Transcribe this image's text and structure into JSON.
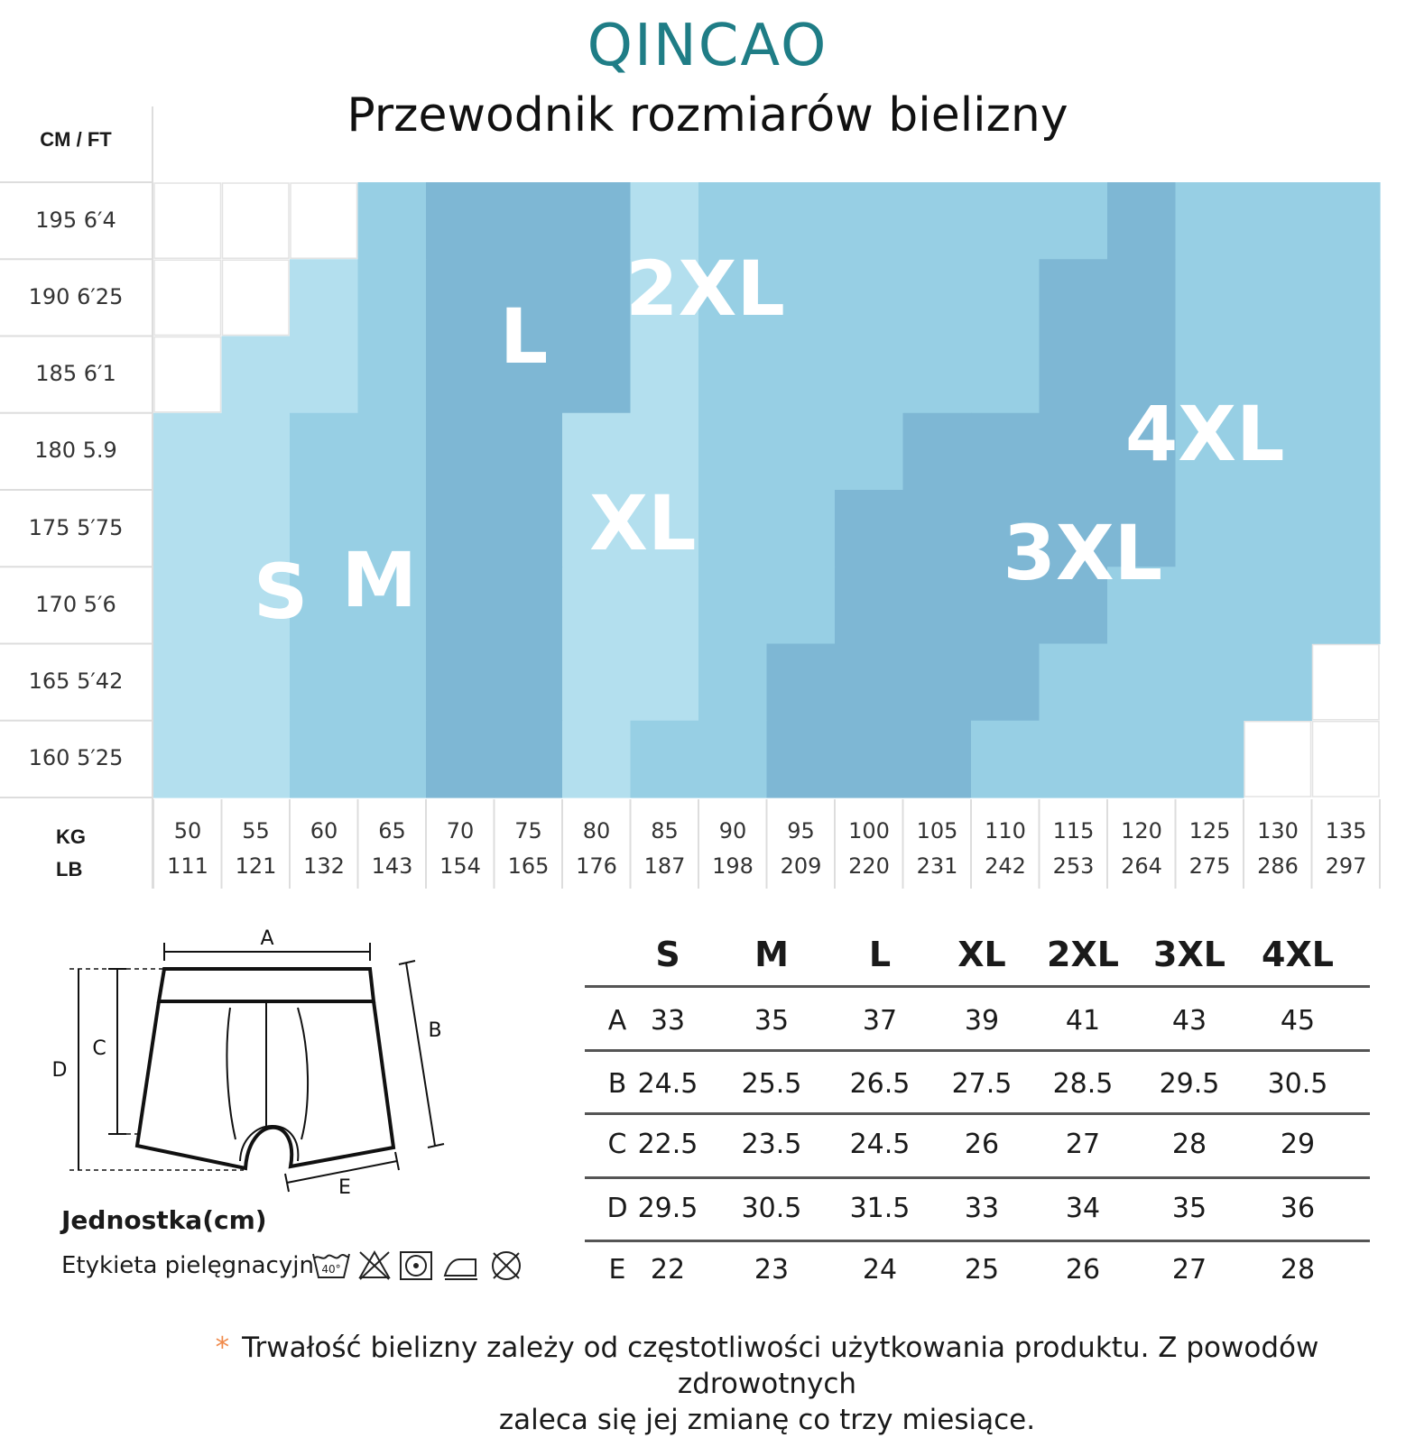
{
  "brand": "QINCAO",
  "title": "Przewodnik rozmiarów bielizny",
  "chart_data": {
    "type": "table",
    "height_axis_label": "CM / FT",
    "heights": [
      {
        "cm": "195",
        "ft": "6′4"
      },
      {
        "cm": "190",
        "ft": "6′25"
      },
      {
        "cm": "185",
        "ft": "6′1"
      },
      {
        "cm": "180",
        "ft": "5.9"
      },
      {
        "cm": "175",
        "ft": "5′75"
      },
      {
        "cm": "170",
        "ft": "5′6"
      },
      {
        "cm": "165",
        "ft": "5′42"
      },
      {
        "cm": "160",
        "ft": "5′25"
      }
    ],
    "weight_axis_label": {
      "kg": "KG",
      "lb": "LB"
    },
    "weights": [
      {
        "kg": "50",
        "lb": "111"
      },
      {
        "kg": "55",
        "lb": "121"
      },
      {
        "kg": "60",
        "lb": "132"
      },
      {
        "kg": "65",
        "lb": "143"
      },
      {
        "kg": "70",
        "lb": "154"
      },
      {
        "kg": "75",
        "lb": "165"
      },
      {
        "kg": "80",
        "lb": "176"
      },
      {
        "kg": "85",
        "lb": "187"
      },
      {
        "kg": "90",
        "lb": "198"
      },
      {
        "kg": "95",
        "lb": "209"
      },
      {
        "kg": "100",
        "lb": "220"
      },
      {
        "kg": "105",
        "lb": "231"
      },
      {
        "kg": "110",
        "lb": "242"
      },
      {
        "kg": "115",
        "lb": "253"
      },
      {
        "kg": "120",
        "lb": "264"
      },
      {
        "kg": "125",
        "lb": "275"
      },
      {
        "kg": "130",
        "lb": "286"
      },
      {
        "kg": "135",
        "lb": "297"
      }
    ],
    "size_labels": [
      "S",
      "M",
      "L",
      "XL",
      "2XL",
      "3XL",
      "4XL"
    ],
    "grid": [
      [
        "",
        "",
        "",
        "M",
        "L",
        "L",
        "L",
        "XL",
        "2XL",
        "2XL",
        "2XL",
        "2XL",
        "2XL",
        "2XL",
        "3XL",
        "4XL",
        "4XL",
        "4XL"
      ],
      [
        "",
        "",
        "S",
        "M",
        "L",
        "L",
        "L",
        "XL",
        "2XL",
        "2XL",
        "2XL",
        "2XL",
        "2XL",
        "3XL",
        "3XL",
        "4XL",
        "4XL",
        "4XL"
      ],
      [
        "",
        "S",
        "S",
        "M",
        "L",
        "L",
        "L",
        "XL",
        "2XL",
        "2XL",
        "2XL",
        "2XL",
        "2XL",
        "3XL",
        "3XL",
        "4XL",
        "4XL",
        "4XL"
      ],
      [
        "S",
        "S",
        "M",
        "M",
        "L",
        "L",
        "XL",
        "XL",
        "2XL",
        "2XL",
        "2XL",
        "3XL",
        "3XL",
        "3XL",
        "3XL",
        "4XL",
        "4XL",
        "4XL"
      ],
      [
        "S",
        "S",
        "M",
        "M",
        "L",
        "L",
        "XL",
        "XL",
        "2XL",
        "2XL",
        "3XL",
        "3XL",
        "3XL",
        "3XL",
        "3XL",
        "4XL",
        "4XL",
        "4XL"
      ],
      [
        "S",
        "S",
        "M",
        "M",
        "L",
        "L",
        "XL",
        "XL",
        "2XL",
        "2XL",
        "3XL",
        "3XL",
        "3XL",
        "3XL",
        "4XL",
        "4XL",
        "4XL",
        "4XL"
      ],
      [
        "S",
        "S",
        "M",
        "M",
        "L",
        "L",
        "XL",
        "XL",
        "2XL",
        "3XL",
        "3XL",
        "3XL",
        "3XL",
        "4XL",
        "4XL",
        "4XL",
        "4XL",
        ""
      ],
      [
        "S",
        "S",
        "M",
        "M",
        "L",
        "L",
        "XL",
        "2XL",
        "2XL",
        "3XL",
        "3XL",
        "3XL",
        "4XL",
        "4XL",
        "4XL",
        "4XL",
        "",
        ""
      ]
    ],
    "colors": {
      "S": "#b3dfee",
      "M": "#97cfe4",
      "L": "#7eb7d4",
      "XL": "#b3dfee",
      "2XL": "#97cfe4",
      "3XL": "#7eb7d4",
      "4XL": "#97cfe4"
    }
  },
  "diagram": {
    "labels": {
      "a": "A",
      "b": "B",
      "c": "C",
      "d": "D",
      "e": "E"
    },
    "unit": "Jednostka(cm)",
    "care_label": "Etykieta pielęgnacyjn",
    "wash_temp": "40°",
    "care_icons": [
      "wash-40-icon",
      "no-bleach-icon",
      "tumble-dry-icon",
      "iron-icon",
      "no-dry-clean-icon"
    ]
  },
  "measurements": {
    "sizes": [
      "S",
      "M",
      "L",
      "XL",
      "2XL",
      "3XL",
      "4XL"
    ],
    "rows": [
      {
        "label": "A",
        "values": [
          "33",
          "35",
          "37",
          "39",
          "41",
          "43",
          "45"
        ]
      },
      {
        "label": "B",
        "values": [
          "24.5",
          "25.5",
          "26.5",
          "27.5",
          "28.5",
          "29.5",
          "30.5"
        ]
      },
      {
        "label": "C",
        "values": [
          "22.5",
          "23.5",
          "24.5",
          "26",
          "27",
          "28",
          "29"
        ]
      },
      {
        "label": "D",
        "values": [
          "29.5",
          "30.5",
          "31.5",
          "33",
          "34",
          "35",
          "36"
        ]
      },
      {
        "label": "E",
        "values": [
          "22",
          "23",
          "24",
          "25",
          "26",
          "27",
          "28"
        ]
      }
    ]
  },
  "footnote": {
    "star": "*",
    "line1": "Trwałość bielizny zależy od częstotliwości użytkowania produktu. Z powodów zdrowotnych",
    "line2": "zaleca się jej zmianę co trzy miesiące."
  }
}
